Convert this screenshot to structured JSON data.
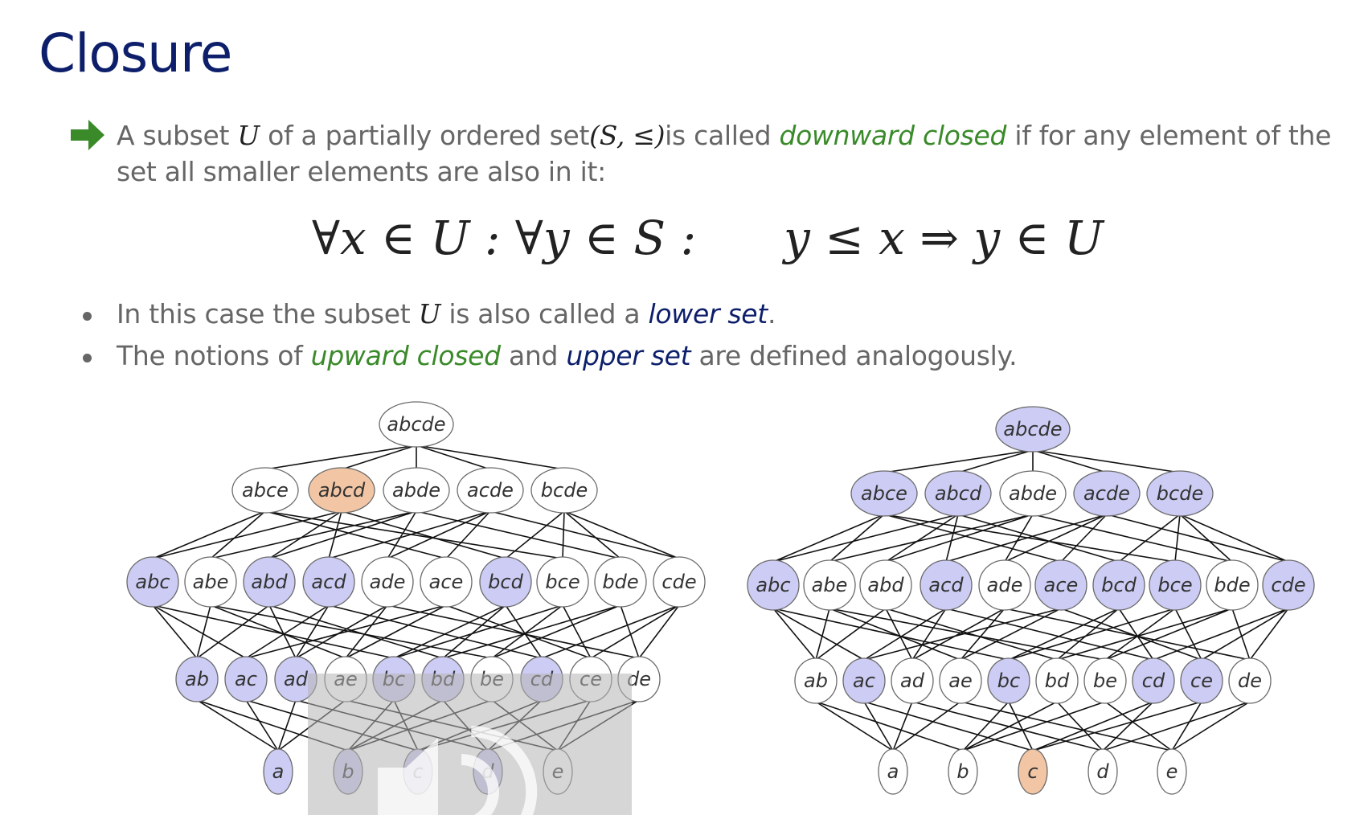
{
  "title": "Closure",
  "definition": {
    "t1": "A subset ",
    "u1": "U",
    "t2": " of a partially ordered set",
    "poset": "(S, ≤)",
    "t3": "is called ",
    "downward": "downward closed",
    "t4": " if for any element of the set all smaller elements are also in it:"
  },
  "formula": {
    "left": "∀x ∈ U : ∀y ∈ S :",
    "right": "y ≤ x ⇒ y ∈ U"
  },
  "bullets": [
    {
      "a": "In this case the subset ",
      "u": "U",
      "b": " is also called a ",
      "term": "lower set",
      "c": "."
    },
    {
      "a": "The notions of ",
      "term1": "upward closed",
      "b": " and ",
      "term2": "upper set",
      "c": " are defined analogously."
    }
  ],
  "colors": {
    "highlight_blue": "#ccccf4",
    "highlight_orange": "#f2c6a4",
    "plain": "#ffffff",
    "edge": "#111111",
    "overlay": "#b4b4b4"
  },
  "lattices": [
    {
      "name": "downward-closed-example",
      "generator": "abcd",
      "levels": [
        [
          {
            "label": "abcde",
            "state": "plain"
          }
        ],
        [
          {
            "label": "abce",
            "state": "plain"
          },
          {
            "label": "abcd",
            "state": "orange"
          },
          {
            "label": "abde",
            "state": "plain"
          },
          {
            "label": "acde",
            "state": "plain"
          },
          {
            "label": "bcde",
            "state": "plain"
          }
        ],
        [
          {
            "label": "abc",
            "state": "blue"
          },
          {
            "label": "abe",
            "state": "plain"
          },
          {
            "label": "abd",
            "state": "blue"
          },
          {
            "label": "acd",
            "state": "blue"
          },
          {
            "label": "ade",
            "state": "plain"
          },
          {
            "label": "ace",
            "state": "plain"
          },
          {
            "label": "bcd",
            "state": "blue"
          },
          {
            "label": "bce",
            "state": "plain"
          },
          {
            "label": "bde",
            "state": "plain"
          },
          {
            "label": "cde",
            "state": "plain"
          }
        ],
        [
          {
            "label": "ab",
            "state": "blue"
          },
          {
            "label": "ac",
            "state": "blue"
          },
          {
            "label": "ad",
            "state": "blue"
          },
          {
            "label": "ae",
            "state": "plain"
          },
          {
            "label": "bc",
            "state": "blue"
          },
          {
            "label": "bd",
            "state": "blue"
          },
          {
            "label": "be",
            "state": "plain"
          },
          {
            "label": "cd",
            "state": "blue"
          },
          {
            "label": "ce",
            "state": "plain"
          },
          {
            "label": "de",
            "state": "plain"
          }
        ],
        [
          {
            "label": "a",
            "state": "blue"
          },
          {
            "label": "b",
            "state": "blue"
          },
          {
            "label": "c",
            "state": "blue"
          },
          {
            "label": "d",
            "state": "blue"
          },
          {
            "label": "e",
            "state": "plain"
          }
        ]
      ]
    },
    {
      "name": "upward-closed-example",
      "generator": "c",
      "levels": [
        [
          {
            "label": "abcde",
            "state": "blue"
          }
        ],
        [
          {
            "label": "abce",
            "state": "blue"
          },
          {
            "label": "abcd",
            "state": "blue"
          },
          {
            "label": "abde",
            "state": "plain"
          },
          {
            "label": "acde",
            "state": "blue"
          },
          {
            "label": "bcde",
            "state": "blue"
          }
        ],
        [
          {
            "label": "abc",
            "state": "blue"
          },
          {
            "label": "abe",
            "state": "plain"
          },
          {
            "label": "abd",
            "state": "plain"
          },
          {
            "label": "acd",
            "state": "blue"
          },
          {
            "label": "ade",
            "state": "plain"
          },
          {
            "label": "ace",
            "state": "blue"
          },
          {
            "label": "bcd",
            "state": "blue"
          },
          {
            "label": "bce",
            "state": "blue"
          },
          {
            "label": "bde",
            "state": "plain"
          },
          {
            "label": "cde",
            "state": "blue"
          }
        ],
        [
          {
            "label": "ab",
            "state": "plain"
          },
          {
            "label": "ac",
            "state": "blue"
          },
          {
            "label": "ad",
            "state": "plain"
          },
          {
            "label": "ae",
            "state": "plain"
          },
          {
            "label": "bc",
            "state": "blue"
          },
          {
            "label": "bd",
            "state": "plain"
          },
          {
            "label": "be",
            "state": "plain"
          },
          {
            "label": "cd",
            "state": "blue"
          },
          {
            "label": "ce",
            "state": "blue"
          },
          {
            "label": "de",
            "state": "plain"
          }
        ],
        [
          {
            "label": "a",
            "state": "plain"
          },
          {
            "label": "b",
            "state": "plain"
          },
          {
            "label": "c",
            "state": "orange"
          },
          {
            "label": "d",
            "state": "plain"
          },
          {
            "label": "e",
            "state": "plain"
          }
        ]
      ]
    }
  ]
}
